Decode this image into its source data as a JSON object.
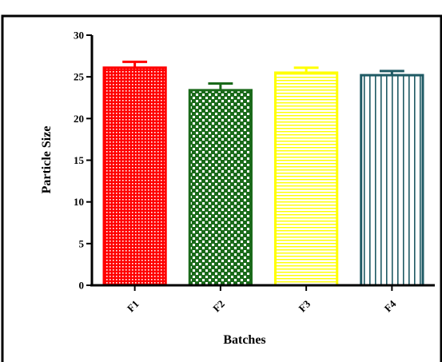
{
  "chart_data": {
    "type": "bar",
    "title": "",
    "xlabel": "Batches",
    "ylabel": "Particle Size",
    "categories": [
      "F1",
      "F2",
      "F3",
      "F4"
    ],
    "values": [
      26.1,
      23.4,
      25.5,
      25.2
    ],
    "errors": [
      0.7,
      0.8,
      0.6,
      0.5
    ],
    "ylim": [
      0,
      30
    ],
    "yticks": [
      0,
      5,
      10,
      15,
      20,
      25,
      30
    ],
    "grid": false,
    "colors": [
      "#ff0000",
      "#1a6a1a",
      "#ffff00",
      "#1f5a64"
    ],
    "patterns": [
      "dots",
      "checker",
      "horizontal-lines",
      "vertical-lines"
    ]
  }
}
